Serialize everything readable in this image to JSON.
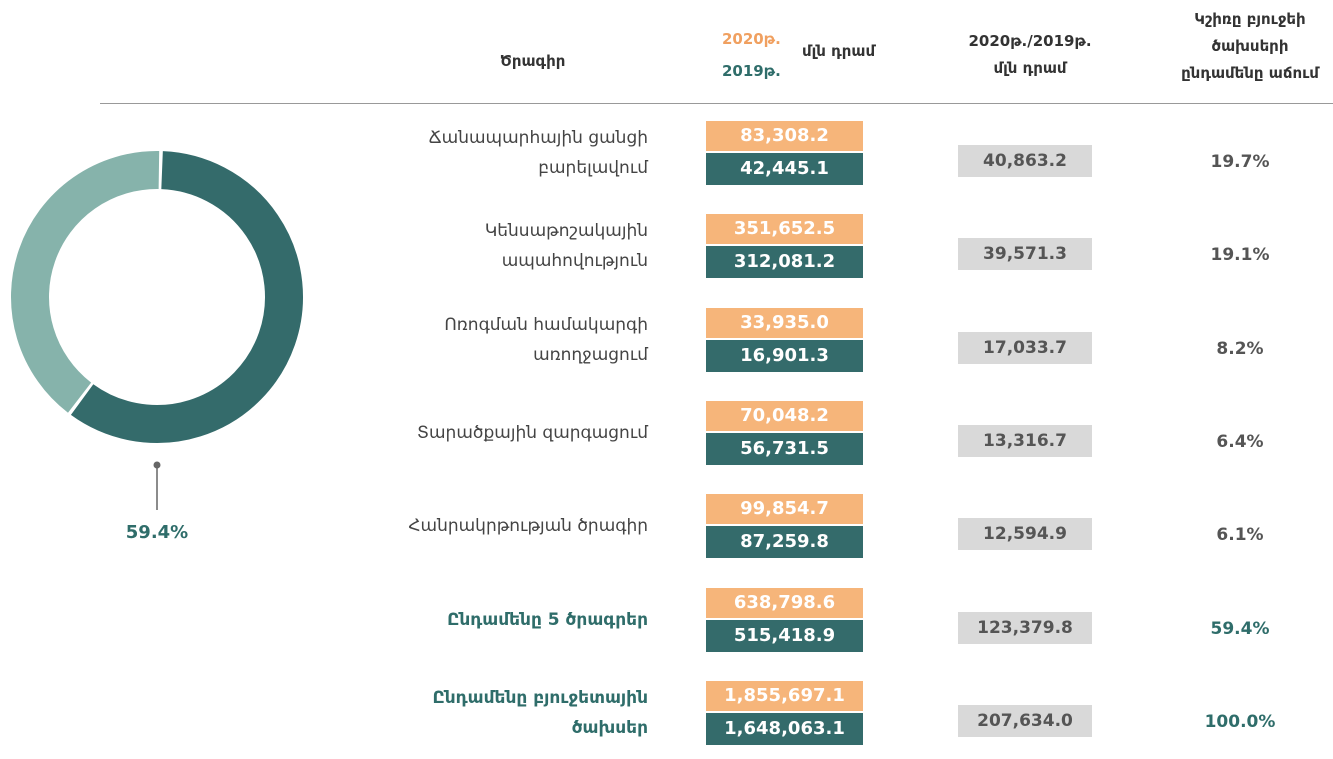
{
  "header": {
    "program": "Ծրագիր",
    "year2020": "2020թ.",
    "year2019": "2019թ.",
    "unit": "մլն դրամ",
    "diff": [
      "2020թ./2019թ.",
      "մլն դրամ"
    ],
    "share": [
      "Կշիռը բյուջեի",
      "ծախսերի",
      "ընդամենը աճում"
    ]
  },
  "donut": {
    "value": 59.4,
    "label": "59.4%"
  },
  "rows": [
    {
      "name": [
        "Ճանապարհային ցանցի",
        "բարելավում"
      ],
      "v2020": "83,308.2",
      "v2019": "42,445.1",
      "diff": "40,863.2",
      "share": "19.7%"
    },
    {
      "name": [
        "Կենսաթոշակային",
        "ապահովություն"
      ],
      "v2020": "351,652.5",
      "v2019": "312,081.2",
      "diff": "39,571.3",
      "share": "19.1%"
    },
    {
      "name": [
        "Ոռոգման համակարգի",
        "առողջացում"
      ],
      "v2020": "33,935.0",
      "v2019": "16,901.3",
      "diff": "17,033.7",
      "share": "8.2%"
    },
    {
      "name": [
        "Տարածքային զարգացում"
      ],
      "v2020": "70,048.2",
      "v2019": "56,731.5",
      "diff": "13,316.7",
      "share": "6.4%"
    },
    {
      "name": [
        "Հանրակրթության ծրագիր"
      ],
      "v2020": "99,854.7",
      "v2019": "87,259.8",
      "diff": "12,594.9",
      "share": "6.1%"
    },
    {
      "name": [
        "Ընդամենը 5 ծրագրեր"
      ],
      "v2020": "638,798.6",
      "v2019": "515,418.9",
      "diff": "123,379.8",
      "share": "59.4%"
    },
    {
      "name": [
        "Ընդամենը բյուջետային",
        "ծախսեր"
      ],
      "v2020": "1,855,697.1",
      "v2019": "1,648,063.1",
      "diff": "207,634.0",
      "share": "100.0%"
    }
  ]
}
